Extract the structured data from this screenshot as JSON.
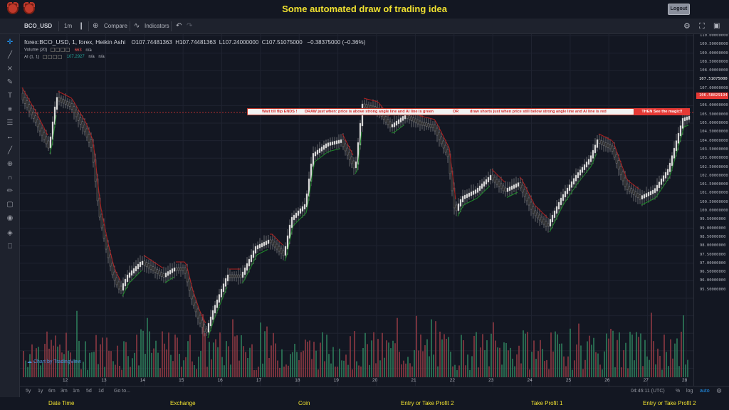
{
  "header": {
    "title": "Some automated draw of trading idea",
    "logout_label": "Logout"
  },
  "toolbar": {
    "symbol": "BCO_USD",
    "interval": "1m",
    "compare_label": "Compare",
    "indicators_label": "Indicators"
  },
  "legend": {
    "symbol_line": "forex:BCO_USD, 1, forex, Heikin Ashi",
    "open": "O107.74481363",
    "high": "H107.74481363",
    "low": "L107.24000000",
    "close": "C107.51075000",
    "change": "−0.38375000 (−0.36%)",
    "volume_label": "Volume (20)",
    "volume_value": "663",
    "volume_na": "n/a",
    "ai_label": "AI (1, 1)",
    "ai_value": "107.2927",
    "ai_na1": "n/a",
    "ai_na2": "n/a"
  },
  "annotation": {
    "part1": "Wait till flip ENDS !",
    "part2": "DRAW just when:  price is above strong angle line and AI line is green",
    "part3": "OR",
    "part4": "draw shorts just when price still below strong angle line and AI line is red",
    "magic": "THEN See the magic!!"
  },
  "watermark": "Chart by TradingView",
  "price_axis": {
    "labels": [
      "110.00000000",
      "109.50000000",
      "109.00000000",
      "108.50000000",
      "108.00000000",
      "107.00000000",
      "106.00000000",
      "105.50000000",
      "105.00000000",
      "104.50000000",
      "104.00000000",
      "103.50000000",
      "103.00000000",
      "102.50000000",
      "102.00000000",
      "101.50000000",
      "101.00000000",
      "100.50000000",
      "100.00000000",
      "99.50000000",
      "99.00000000",
      "98.50000000",
      "98.00000000",
      "97.50000000",
      "97.00000000",
      "96.50000000",
      "96.00000000",
      "95.50000000"
    ],
    "current_price": "107.51075000",
    "line_price": "106.58829194"
  },
  "time_axis": {
    "labels": [
      "12",
      "13",
      "14",
      "15",
      "16",
      "17",
      "18",
      "19",
      "20",
      "21",
      "22",
      "23",
      "24",
      "25",
      "26",
      "27",
      "28"
    ]
  },
  "bottom": {
    "ranges": [
      "5y",
      "1y",
      "6m",
      "3m",
      "1m",
      "5d",
      "1d"
    ],
    "goto": "Go to...",
    "clock": "04:46:11 (UTC)",
    "percent": "%",
    "log": "log",
    "auto": "auto"
  },
  "footer": {
    "items": [
      "Date Time",
      "Exchange",
      "Coin",
      "Entry or Take Profit 2",
      "Take Profit 1",
      "Entry or Take Profit 2"
    ]
  },
  "colors": {
    "up": "#e8e8e8",
    "down": "#1a1a1a",
    "ai_green": "#1f8a2a",
    "ai_red": "#b02020",
    "vol_up": "#2e7d5b",
    "vol_down": "#8e3a44",
    "title": "#f0e130"
  }
}
